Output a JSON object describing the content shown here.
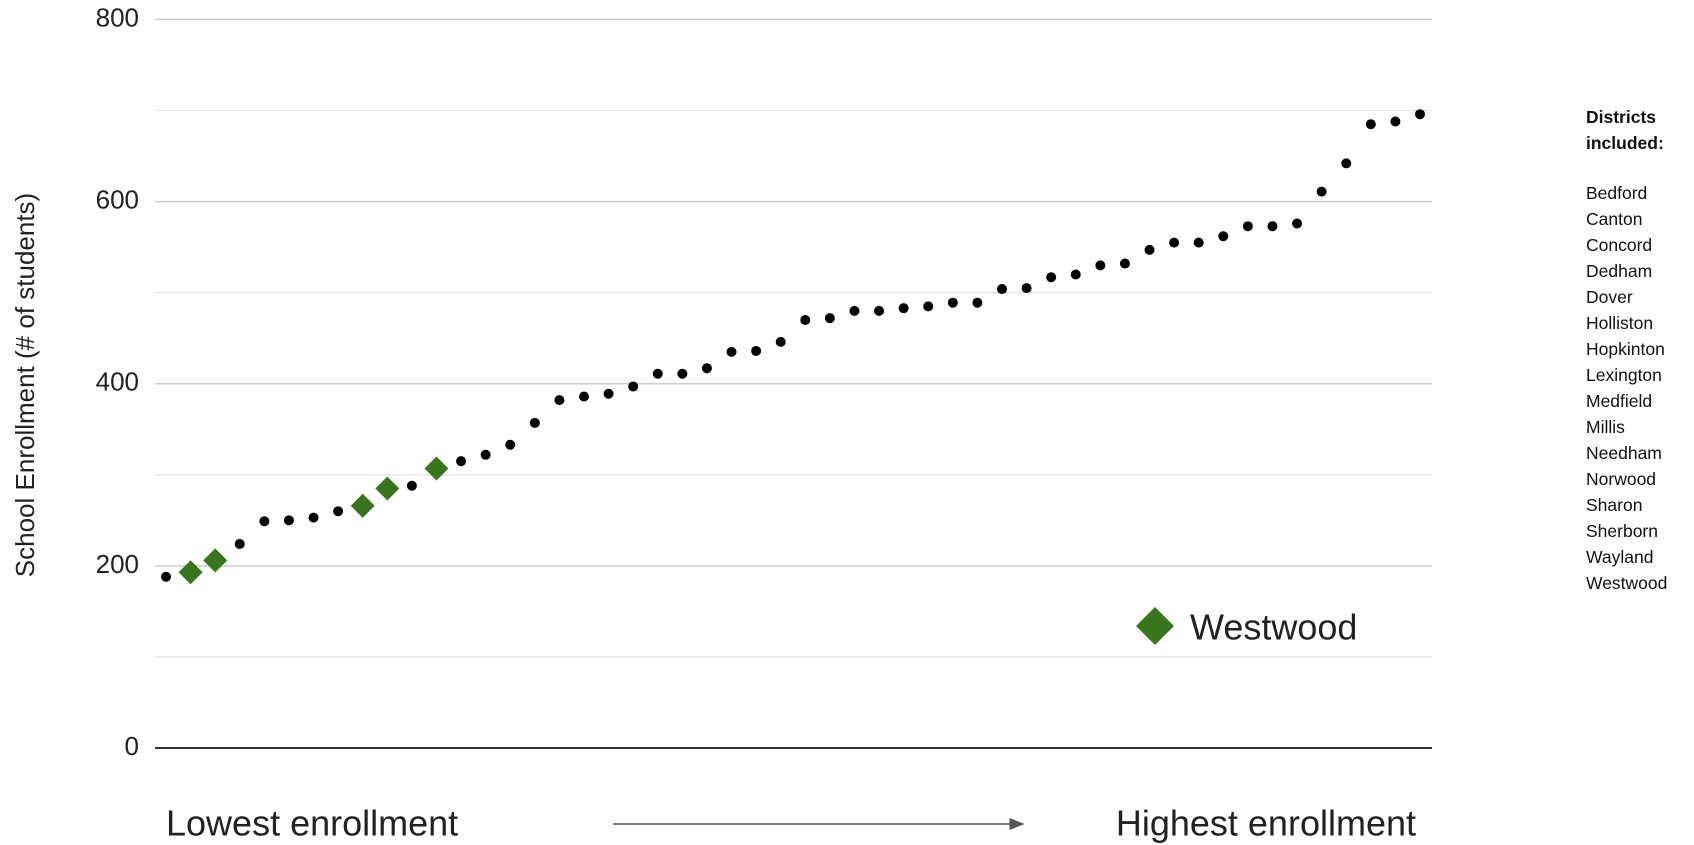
{
  "chart_data": {
    "type": "scatter",
    "y_label": "School Enrollment (#  of students)",
    "x_start_label": "Lowest enrollment",
    "x_end_label": "Highest enrollment",
    "ylim": [
      0,
      800
    ],
    "yticks": [
      0,
      200,
      400,
      600,
      800
    ],
    "grid": true,
    "minor_grid": true,
    "legend": "bottom-right",
    "series": [
      {
        "color": "#000000",
        "marker": "circle",
        "values": [
          188,
          null,
          null,
          224,
          249,
          250,
          253,
          260,
          null,
          null,
          288,
          null,
          315,
          322,
          333,
          357,
          382,
          386,
          389,
          397,
          411,
          411,
          417,
          435,
          436,
          446,
          470,
          472,
          480,
          480,
          483,
          485,
          489,
          489,
          504,
          505,
          517,
          520,
          530,
          532,
          547,
          555,
          555,
          562,
          573,
          573,
          576,
          611,
          642,
          685,
          688,
          696
        ]
      },
      {
        "name": "Westwood",
        "color": "#38761d",
        "marker": "diamond",
        "values": [
          null,
          193,
          206,
          null,
          null,
          null,
          null,
          null,
          266,
          285,
          null,
          307,
          null,
          null,
          null,
          null,
          null,
          null,
          null,
          null,
          null,
          null,
          null,
          null,
          null,
          null,
          null,
          null,
          null,
          null,
          null,
          null,
          null,
          null,
          null,
          null,
          null,
          null,
          null,
          null,
          null,
          null,
          null,
          null,
          null,
          null,
          null,
          null,
          null,
          null,
          null,
          null
        ]
      }
    ]
  },
  "sidebar": {
    "title": "Districts included:",
    "items": [
      "Bedford",
      "Canton",
      "Concord",
      "Dedham",
      "Dover",
      "Holliston",
      "Hopkinton",
      "Lexington",
      "Medfield",
      "Millis",
      "Needham",
      "Norwood",
      "Sharon",
      "Sherborn",
      "Wayland",
      "Westwood"
    ]
  }
}
